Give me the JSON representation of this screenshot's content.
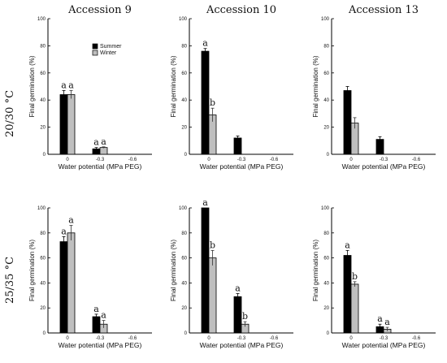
{
  "chart_data": [
    {
      "type": "bar",
      "title": "Accession 9",
      "row_label": "20/30 °C",
      "categories": [
        "0",
        "-0.3",
        "-0.6"
      ],
      "xlabel": "Water potential (MPa PEG)",
      "ylabel": "Final germination (%)",
      "ylim": [
        0,
        100
      ],
      "legend": [
        "Summer",
        "Winter"
      ],
      "series": [
        {
          "name": "Summer",
          "color": "#000000",
          "values": [
            44,
            4,
            null
          ],
          "errors": [
            3,
            1,
            null
          ],
          "letters": [
            "a",
            "a",
            ""
          ]
        },
        {
          "name": "Winter",
          "color": "#bfbfbf",
          "values": [
            44,
            5,
            null
          ],
          "errors": [
            3,
            0.5,
            null
          ],
          "letters": [
            "a",
            "a",
            ""
          ]
        }
      ]
    },
    {
      "type": "bar",
      "title": "Accession 10",
      "row_label": "",
      "categories": [
        "0",
        "-0.3",
        "-0.6"
      ],
      "xlabel": "Water potential (MPa PEG)",
      "ylabel": "Final germination (%)",
      "ylim": [
        0,
        100
      ],
      "series": [
        {
          "name": "Summer",
          "color": "#000000",
          "values": [
            76,
            12,
            null
          ],
          "errors": [
            2,
            1.5,
            null
          ],
          "letters": [
            "a",
            "",
            ""
          ]
        },
        {
          "name": "Winter",
          "color": "#bfbfbf",
          "values": [
            29,
            null,
            null
          ],
          "errors": [
            5,
            null,
            null
          ],
          "letters": [
            "b",
            "",
            ""
          ]
        }
      ]
    },
    {
      "type": "bar",
      "title": "Accession 13",
      "row_label": "",
      "categories": [
        "0",
        "-0.3",
        "-0.6"
      ],
      "xlabel": "Water potential (MPa PEG)",
      "ylabel": "Final germination (%)",
      "ylim": [
        0,
        100
      ],
      "series": [
        {
          "name": "Summer",
          "color": "#000000",
          "values": [
            47,
            11,
            null
          ],
          "errors": [
            3,
            2,
            null
          ],
          "letters": [
            "",
            "",
            ""
          ]
        },
        {
          "name": "Winter",
          "color": "#bfbfbf",
          "values": [
            23,
            null,
            null
          ],
          "errors": [
            4,
            null,
            null
          ],
          "letters": [
            "",
            "",
            ""
          ]
        }
      ]
    },
    {
      "type": "bar",
      "title": "",
      "row_label": "25/35 °C",
      "categories": [
        "0",
        "-0.3",
        "-0.6"
      ],
      "xlabel": "Water potential (MPa PEG)",
      "ylabel": "Final germination (%)",
      "ylim": [
        0,
        100
      ],
      "series": [
        {
          "name": "Summer",
          "color": "#000000",
          "values": [
            73,
            13,
            null
          ],
          "errors": [
            4,
            2,
            null
          ],
          "letters": [
            "a",
            "a",
            ""
          ]
        },
        {
          "name": "Winter",
          "color": "#bfbfbf",
          "values": [
            80,
            7,
            null
          ],
          "errors": [
            6,
            3,
            null
          ],
          "letters": [
            "a",
            "a",
            ""
          ]
        }
      ]
    },
    {
      "type": "bar",
      "title": "",
      "row_label": "",
      "categories": [
        "0",
        "-0.3",
        "-0.6"
      ],
      "xlabel": "Water potential (MPa PEG)",
      "ylabel": "Final germination (%)",
      "ylim": [
        0,
        100
      ],
      "series": [
        {
          "name": "Summer",
          "color": "#000000",
          "values": [
            100,
            29,
            null
          ],
          "errors": [
            0,
            2.5,
            null
          ],
          "letters": [
            "a",
            "a",
            ""
          ]
        },
        {
          "name": "Winter",
          "color": "#bfbfbf",
          "values": [
            60,
            7,
            null
          ],
          "errors": [
            6,
            2,
            null
          ],
          "letters": [
            "b",
            "b",
            ""
          ]
        }
      ]
    },
    {
      "type": "bar",
      "title": "",
      "row_label": "",
      "categories": [
        "0",
        "-0.3",
        "-0.6"
      ],
      "xlabel": "Water potential (MPa PEG)",
      "ylabel": "Final germination (%)",
      "ylim": [
        0,
        100
      ],
      "series": [
        {
          "name": "Summer",
          "color": "#000000",
          "values": [
            62,
            5,
            null
          ],
          "errors": [
            4,
            2,
            null
          ],
          "letters": [
            "a",
            "a",
            ""
          ]
        },
        {
          "name": "Winter",
          "color": "#bfbfbf",
          "values": [
            39,
            3,
            null
          ],
          "errors": [
            2,
            1.5,
            null
          ],
          "letters": [
            "b",
            "a",
            ""
          ]
        }
      ]
    }
  ],
  "y_ticks": [
    0,
    20,
    40,
    60,
    80,
    100
  ]
}
